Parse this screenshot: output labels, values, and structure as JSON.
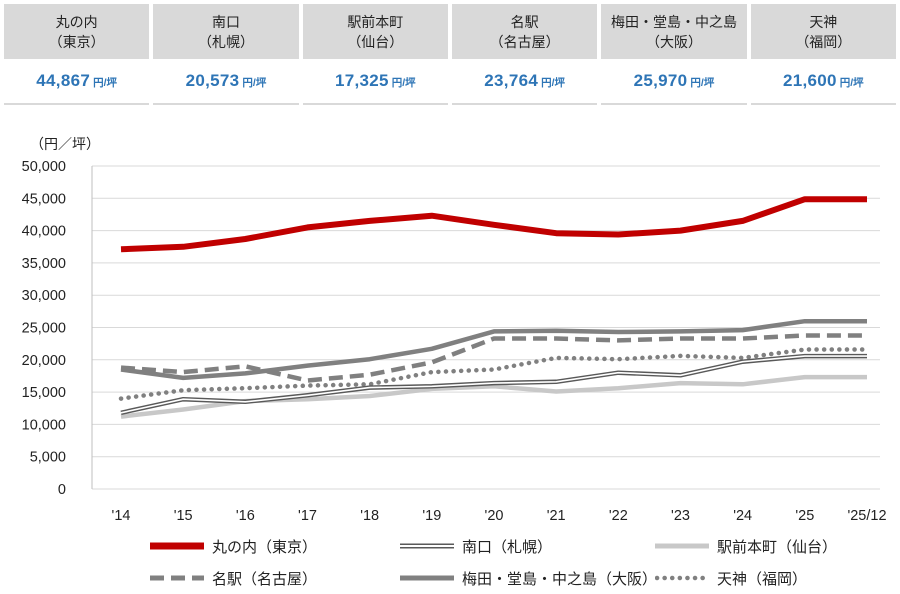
{
  "summary": {
    "unit": "円/坪",
    "items": [
      {
        "name": "丸の内",
        "area": "（東京）",
        "value": "44,867"
      },
      {
        "name": "南口",
        "area": "（札幌）",
        "value": "20,573"
      },
      {
        "name": "駅前本町",
        "area": "（仙台）",
        "value": "17,325"
      },
      {
        "name": "名駅",
        "area": "（名古屋）",
        "value": "23,764"
      },
      {
        "name": "梅田・堂島・中之島",
        "area": "（大阪）",
        "value": "25,970"
      },
      {
        "name": "天神",
        "area": "（福岡）",
        "value": "21,600"
      }
    ],
    "colors": {
      "header_bg": "#d9d9d9",
      "value_text": "#2e75b6"
    }
  },
  "chart_data": {
    "type": "line",
    "ylabel": "（円／坪）",
    "ylim": [
      0,
      50000
    ],
    "yticks": [
      0,
      5000,
      10000,
      15000,
      20000,
      25000,
      30000,
      35000,
      40000,
      45000,
      50000
    ],
    "ytick_labels": [
      "0",
      "5,000",
      "10,000",
      "15,000",
      "20,000",
      "25,000",
      "30,000",
      "35,000",
      "40,000",
      "45,000",
      "50,000"
    ],
    "categories": [
      "'14",
      "'15",
      "'16",
      "'17",
      "'18",
      "'19",
      "'20",
      "'21",
      "'22",
      "'23",
      "'24",
      "'25",
      "'25/12"
    ],
    "grid": "horizontal",
    "legend_position": "bottom",
    "series": [
      {
        "name": "丸の内（東京）",
        "style": "thick-solid",
        "color": "#c00000",
        "values": [
          37100,
          37500,
          38700,
          40500,
          41500,
          42300,
          40900,
          39600,
          39400,
          40000,
          41500,
          44867,
          44867
        ]
      },
      {
        "name": "南口（札幌）",
        "style": "double",
        "color": "#595959",
        "values": [
          11800,
          13900,
          13500,
          14500,
          15700,
          15900,
          16400,
          16600,
          18000,
          17600,
          19700,
          20573,
          20573
        ]
      },
      {
        "name": "駅前本町（仙台）",
        "style": "light-solid",
        "color": "#c8c8c8",
        "values": [
          11200,
          12300,
          13600,
          13900,
          14400,
          15500,
          15900,
          15100,
          15600,
          16400,
          16200,
          17325,
          17325
        ]
      },
      {
        "name": "名駅（名古屋）",
        "style": "dashed",
        "color": "#808080",
        "values": [
          18800,
          18100,
          19000,
          16800,
          17700,
          19600,
          23300,
          23300,
          23000,
          23300,
          23300,
          23764,
          23764
        ]
      },
      {
        "name": "梅田・堂島・中之島（大阪）",
        "style": "solid",
        "color": "#808080",
        "values": [
          18500,
          17200,
          17900,
          19100,
          20100,
          21700,
          24400,
          24500,
          24300,
          24400,
          24600,
          25970,
          25970
        ]
      },
      {
        "name": "天神（福岡）",
        "style": "dotted",
        "color": "#808080",
        "values": [
          14000,
          15300,
          15600,
          16000,
          16200,
          18100,
          18500,
          20300,
          20100,
          20600,
          20300,
          21600,
          21600
        ]
      }
    ]
  }
}
